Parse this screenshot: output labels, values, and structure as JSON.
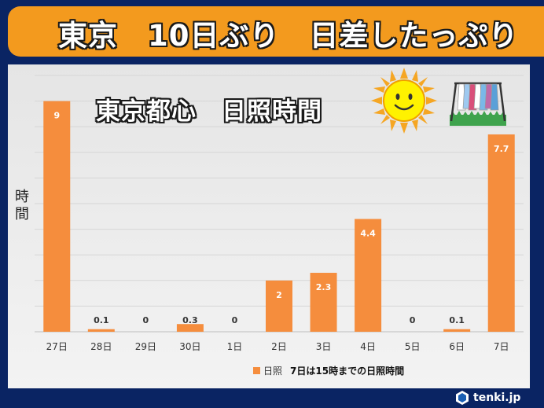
{
  "banner": {
    "title": "東京　10日ぶり　日差したっぷり"
  },
  "chart_data": {
    "type": "bar",
    "title": "東京都心　日照時間",
    "ylabel": "時間",
    "categories": [
      "27日",
      "28日",
      "29日",
      "30日",
      "1日",
      "2日",
      "3日",
      "4日",
      "5日",
      "6日",
      "7日"
    ],
    "series": [
      {
        "name": "日照",
        "values": [
          9,
          0.1,
          0,
          0.3,
          0,
          2,
          2.3,
          4.4,
          0,
          0.1,
          7.7
        ]
      }
    ],
    "value_labels": [
      "9",
      "0.1",
      "0",
      "0.3",
      "0",
      "2",
      "2.3",
      "4.4",
      "0",
      "0.1",
      "7.7"
    ],
    "ylim": [
      0,
      10
    ],
    "grid": true,
    "legend_note": "7日は15時までの日照時間",
    "bar_color": "#f58d3d"
  },
  "logo": {
    "text": "tenki.jp",
    "icon": "tenki-logo-icon"
  },
  "decorations": {
    "sun": "sun-face-icon",
    "laundry": "laundry-rack-icon"
  }
}
